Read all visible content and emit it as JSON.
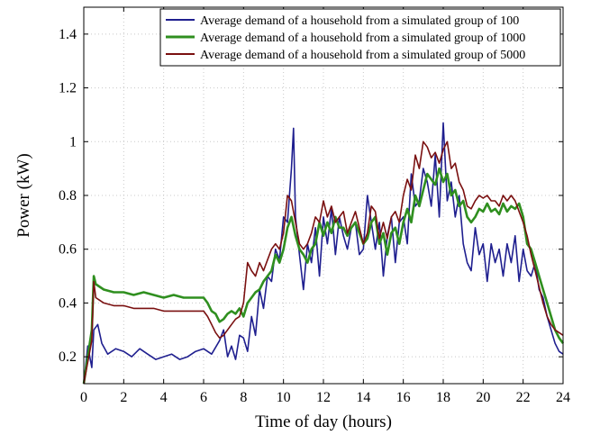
{
  "chart_data": {
    "type": "line",
    "title": "",
    "xlabel": "Time of day (hours)",
    "ylabel": "Power (kW)",
    "xlim": [
      0,
      24
    ],
    "ylim": [
      0.1,
      1.5
    ],
    "xticks": [
      0,
      2,
      4,
      6,
      8,
      10,
      12,
      14,
      16,
      18,
      20,
      22,
      24
    ],
    "yticks": [
      0.2,
      0.4,
      0.6,
      0.8,
      1,
      1.2,
      1.4
    ],
    "grid": true,
    "legend_position": "top-right",
    "series": [
      {
        "name": "Average demand of a household from a simulated group of 100",
        "color": "#1f1f8f",
        "x": [
          0,
          0.2,
          0.4,
          0.5,
          0.7,
          0.9,
          1.2,
          1.6,
          2.0,
          2.4,
          2.8,
          3.2,
          3.6,
          4.0,
          4.4,
          4.8,
          5.2,
          5.6,
          6.0,
          6.4,
          6.8,
          7.0,
          7.2,
          7.4,
          7.6,
          7.8,
          8.0,
          8.2,
          8.4,
          8.6,
          8.8,
          9.0,
          9.2,
          9.4,
          9.6,
          9.8,
          10.0,
          10.2,
          10.4,
          10.5,
          10.6,
          10.8,
          11.0,
          11.2,
          11.4,
          11.6,
          11.8,
          12.0,
          12.2,
          12.4,
          12.6,
          12.8,
          13.0,
          13.2,
          13.4,
          13.6,
          13.8,
          14.0,
          14.2,
          14.4,
          14.6,
          14.8,
          15.0,
          15.2,
          15.4,
          15.6,
          15.8,
          16.0,
          16.2,
          16.4,
          16.6,
          16.8,
          17.0,
          17.2,
          17.4,
          17.6,
          17.8,
          18.0,
          18.2,
          18.4,
          18.6,
          18.8,
          19.0,
          19.2,
          19.4,
          19.6,
          19.8,
          20.0,
          20.2,
          20.4,
          20.6,
          20.8,
          21.0,
          21.2,
          21.4,
          21.6,
          21.8,
          22.0,
          22.2,
          22.4,
          22.6,
          22.8,
          23.0,
          23.2,
          23.4,
          23.6,
          23.8,
          24.0
        ],
        "y": [
          0.1,
          0.24,
          0.16,
          0.3,
          0.32,
          0.25,
          0.21,
          0.23,
          0.22,
          0.2,
          0.23,
          0.21,
          0.19,
          0.2,
          0.21,
          0.19,
          0.2,
          0.22,
          0.23,
          0.21,
          0.26,
          0.3,
          0.2,
          0.24,
          0.19,
          0.28,
          0.27,
          0.22,
          0.35,
          0.28,
          0.45,
          0.38,
          0.5,
          0.48,
          0.6,
          0.56,
          0.72,
          0.7,
          0.9,
          1.05,
          0.72,
          0.58,
          0.45,
          0.62,
          0.55,
          0.68,
          0.5,
          0.72,
          0.62,
          0.75,
          0.58,
          0.72,
          0.65,
          0.6,
          0.68,
          0.7,
          0.58,
          0.6,
          0.8,
          0.7,
          0.6,
          0.7,
          0.5,
          0.65,
          0.72,
          0.55,
          0.7,
          0.72,
          0.62,
          0.88,
          0.76,
          0.78,
          0.9,
          0.85,
          0.76,
          0.95,
          0.72,
          1.07,
          0.78,
          0.85,
          0.72,
          0.8,
          0.62,
          0.55,
          0.52,
          0.68,
          0.58,
          0.62,
          0.48,
          0.62,
          0.55,
          0.6,
          0.5,
          0.62,
          0.55,
          0.65,
          0.48,
          0.6,
          0.52,
          0.5,
          0.55,
          0.45,
          0.42,
          0.35,
          0.3,
          0.25,
          0.22,
          0.21
        ]
      },
      {
        "name": "Average demand of a household from a simulated group of 1000",
        "color": "#2f8f1f",
        "x": [
          0,
          0.2,
          0.4,
          0.5,
          0.6,
          0.8,
          1.0,
          1.5,
          2.0,
          2.5,
          3.0,
          3.5,
          4.0,
          4.5,
          5.0,
          5.5,
          6.0,
          6.2,
          6.4,
          6.6,
          6.8,
          7.0,
          7.2,
          7.4,
          7.6,
          7.8,
          8.0,
          8.2,
          8.4,
          8.6,
          8.8,
          9.0,
          9.2,
          9.4,
          9.6,
          9.8,
          10.0,
          10.2,
          10.4,
          10.6,
          10.8,
          11.0,
          11.2,
          11.4,
          11.6,
          11.8,
          12.0,
          12.2,
          12.4,
          12.6,
          12.8,
          13.0,
          13.2,
          13.4,
          13.6,
          13.8,
          14.0,
          14.2,
          14.4,
          14.6,
          14.8,
          15.0,
          15.2,
          15.4,
          15.6,
          15.8,
          16.0,
          16.2,
          16.4,
          16.6,
          16.8,
          17.0,
          17.2,
          17.4,
          17.6,
          17.8,
          18.0,
          18.2,
          18.4,
          18.6,
          18.8,
          19.0,
          19.2,
          19.4,
          19.6,
          19.8,
          20.0,
          20.2,
          20.4,
          20.6,
          20.8,
          21.0,
          21.2,
          21.4,
          21.6,
          21.8,
          22.0,
          22.2,
          22.4,
          22.6,
          22.8,
          23.0,
          23.2,
          23.4,
          23.6,
          23.8,
          24.0
        ],
        "y": [
          0.1,
          0.2,
          0.3,
          0.5,
          0.47,
          0.46,
          0.45,
          0.44,
          0.44,
          0.43,
          0.44,
          0.43,
          0.42,
          0.43,
          0.42,
          0.42,
          0.42,
          0.4,
          0.37,
          0.36,
          0.33,
          0.34,
          0.36,
          0.37,
          0.36,
          0.38,
          0.35,
          0.4,
          0.42,
          0.44,
          0.45,
          0.48,
          0.5,
          0.52,
          0.58,
          0.55,
          0.6,
          0.68,
          0.72,
          0.65,
          0.6,
          0.58,
          0.55,
          0.6,
          0.62,
          0.7,
          0.65,
          0.7,
          0.66,
          0.72,
          0.68,
          0.68,
          0.65,
          0.68,
          0.7,
          0.66,
          0.62,
          0.64,
          0.7,
          0.72,
          0.62,
          0.66,
          0.58,
          0.66,
          0.68,
          0.62,
          0.7,
          0.75,
          0.7,
          0.8,
          0.76,
          0.82,
          0.88,
          0.86,
          0.84,
          0.9,
          0.85,
          0.88,
          0.8,
          0.82,
          0.76,
          0.78,
          0.72,
          0.7,
          0.72,
          0.75,
          0.74,
          0.77,
          0.74,
          0.75,
          0.73,
          0.77,
          0.74,
          0.76,
          0.75,
          0.77,
          0.72,
          0.62,
          0.6,
          0.55,
          0.5,
          0.45,
          0.4,
          0.35,
          0.3,
          0.27,
          0.25
        ]
      },
      {
        "name": "Average demand of a household from a simulated group of 5000",
        "color": "#7a1010",
        "x": [
          0,
          0.2,
          0.4,
          0.5,
          0.6,
          0.8,
          1.0,
          1.5,
          2.0,
          2.5,
          3.0,
          3.5,
          4.0,
          4.5,
          5.0,
          5.5,
          6.0,
          6.2,
          6.4,
          6.6,
          6.8,
          7.0,
          7.2,
          7.4,
          7.6,
          7.8,
          8.0,
          8.2,
          8.4,
          8.6,
          8.8,
          9.0,
          9.2,
          9.4,
          9.6,
          9.8,
          10.0,
          10.2,
          10.4,
          10.6,
          10.8,
          11.0,
          11.2,
          11.4,
          11.6,
          11.8,
          12.0,
          12.2,
          12.4,
          12.6,
          12.8,
          13.0,
          13.2,
          13.4,
          13.6,
          13.8,
          14.0,
          14.2,
          14.4,
          14.6,
          14.8,
          15.0,
          15.2,
          15.4,
          15.6,
          15.8,
          16.0,
          16.2,
          16.4,
          16.6,
          16.8,
          17.0,
          17.2,
          17.4,
          17.6,
          17.8,
          18.0,
          18.2,
          18.4,
          18.6,
          18.8,
          19.0,
          19.2,
          19.4,
          19.6,
          19.8,
          20.0,
          20.2,
          20.4,
          20.6,
          20.8,
          21.0,
          21.2,
          21.4,
          21.6,
          21.8,
          22.0,
          22.2,
          22.4,
          22.6,
          22.8,
          23.0,
          23.2,
          23.4,
          23.6,
          23.8,
          24.0
        ],
        "y": [
          0.1,
          0.18,
          0.26,
          0.48,
          0.42,
          0.41,
          0.4,
          0.39,
          0.39,
          0.38,
          0.38,
          0.38,
          0.37,
          0.37,
          0.37,
          0.37,
          0.37,
          0.35,
          0.32,
          0.29,
          0.27,
          0.28,
          0.3,
          0.32,
          0.34,
          0.35,
          0.4,
          0.55,
          0.52,
          0.5,
          0.55,
          0.52,
          0.56,
          0.6,
          0.62,
          0.6,
          0.66,
          0.8,
          0.78,
          0.7,
          0.62,
          0.6,
          0.62,
          0.66,
          0.72,
          0.7,
          0.78,
          0.72,
          0.76,
          0.7,
          0.72,
          0.74,
          0.66,
          0.7,
          0.74,
          0.68,
          0.62,
          0.66,
          0.76,
          0.74,
          0.64,
          0.7,
          0.64,
          0.72,
          0.74,
          0.7,
          0.8,
          0.86,
          0.82,
          0.95,
          0.9,
          1.0,
          0.98,
          0.94,
          0.96,
          0.92,
          0.97,
          1.0,
          0.9,
          0.92,
          0.85,
          0.82,
          0.76,
          0.75,
          0.78,
          0.8,
          0.79,
          0.8,
          0.78,
          0.78,
          0.76,
          0.8,
          0.78,
          0.8,
          0.78,
          0.74,
          0.7,
          0.65,
          0.58,
          0.52,
          0.46,
          0.4,
          0.35,
          0.32,
          0.3,
          0.29,
          0.28
        ]
      }
    ]
  }
}
